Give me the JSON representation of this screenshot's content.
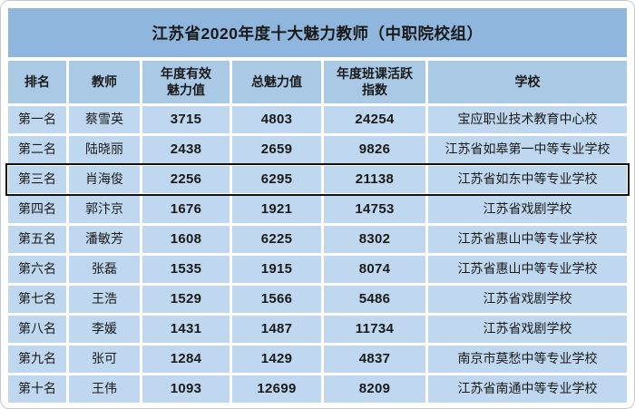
{
  "title": "江苏省2020年度十大魅力教师（中职院校组）",
  "colors": {
    "title_bg": "#8fb6dc",
    "header_bg": "#a9c9e5",
    "row_bg": "#bfd8ef",
    "grid_gap": "#ffffff",
    "text": "#1a1a1a",
    "highlight_border": "#121212",
    "frame_border": "#c9c9c9"
  },
  "table": {
    "columns": {
      "rank": "排名",
      "teacher": "教师",
      "effective_charm": "年度有效魅力值",
      "total_charm": "总魅力值",
      "activity_index": "年度班课活跃指数",
      "school": "学校"
    },
    "highlighted_row_index": 2,
    "rows": [
      {
        "rank": "第一名",
        "teacher": "蔡雪英",
        "effective_charm": "3715",
        "total_charm": "4803",
        "activity_index": "24254",
        "school": "宝应职业技术教育中心校"
      },
      {
        "rank": "第二名",
        "teacher": "陆晓丽",
        "effective_charm": "2438",
        "total_charm": "2659",
        "activity_index": "9826",
        "school": "江苏省如皋第一中等专业学校"
      },
      {
        "rank": "第三名",
        "teacher": "肖海俊",
        "effective_charm": "2256",
        "total_charm": "6295",
        "activity_index": "21138",
        "school": "江苏省如东中等专业学校"
      },
      {
        "rank": "第四名",
        "teacher": "郭汴京",
        "effective_charm": "1676",
        "total_charm": "1921",
        "activity_index": "14753",
        "school": "江苏省戏剧学校"
      },
      {
        "rank": "第五名",
        "teacher": "潘敏芳",
        "effective_charm": "1608",
        "total_charm": "6225",
        "activity_index": "8302",
        "school": "江苏省惠山中等专业学校"
      },
      {
        "rank": "第六名",
        "teacher": "张磊",
        "effective_charm": "1535",
        "total_charm": "1915",
        "activity_index": "8074",
        "school": "江苏省惠山中等专业学校"
      },
      {
        "rank": "第七名",
        "teacher": "王浩",
        "effective_charm": "1529",
        "total_charm": "1566",
        "activity_index": "5486",
        "school": "江苏省戏剧学校"
      },
      {
        "rank": "第八名",
        "teacher": "李媛",
        "effective_charm": "1431",
        "total_charm": "1487",
        "activity_index": "11734",
        "school": "江苏省戏剧学校"
      },
      {
        "rank": "第九名",
        "teacher": "张可",
        "effective_charm": "1284",
        "total_charm": "1429",
        "activity_index": "4837",
        "school": "南京市莫愁中等专业学校"
      },
      {
        "rank": "第十名",
        "teacher": "王伟",
        "effective_charm": "1093",
        "total_charm": "12699",
        "activity_index": "8209",
        "school": "江苏省南通中等专业学校"
      }
    ]
  },
  "chart_data": {
    "type": "table",
    "title": "江苏省2020年度十大魅力教师（中职院校组）",
    "columns": [
      "排名",
      "教师",
      "年度有效魅力值",
      "总魅力值",
      "年度班课活跃指数",
      "学校"
    ],
    "rows": [
      [
        "第一名",
        "蔡雪英",
        3715,
        4803,
        24254,
        "宝应职业技术教育中心校"
      ],
      [
        "第二名",
        "陆晓丽",
        2438,
        2659,
        9826,
        "江苏省如皋第一中等专业学校"
      ],
      [
        "第三名",
        "肖海俊",
        2256,
        6295,
        21138,
        "江苏省如东中等专业学校"
      ],
      [
        "第四名",
        "郭汴京",
        1676,
        1921,
        14753,
        "江苏省戏剧学校"
      ],
      [
        "第五名",
        "潘敏芳",
        1608,
        6225,
        8302,
        "江苏省惠山中等专业学校"
      ],
      [
        "第六名",
        "张磊",
        1535,
        1915,
        8074,
        "江苏省惠山中等专业学校"
      ],
      [
        "第七名",
        "王浩",
        1529,
        1566,
        5486,
        "江苏省戏剧学校"
      ],
      [
        "第八名",
        "李媛",
        1431,
        1487,
        11734,
        "江苏省戏剧学校"
      ],
      [
        "第九名",
        "张可",
        1284,
        1429,
        4837,
        "南京市莫愁中等专业学校"
      ],
      [
        "第十名",
        "王伟",
        1093,
        12699,
        8209,
        "江苏省南通中等专业学校"
      ]
    ],
    "annotations": [
      "第三名一行带黑色边框突出显示"
    ],
    "layout": {
      "grid": "on",
      "header_rows": 1
    }
  }
}
